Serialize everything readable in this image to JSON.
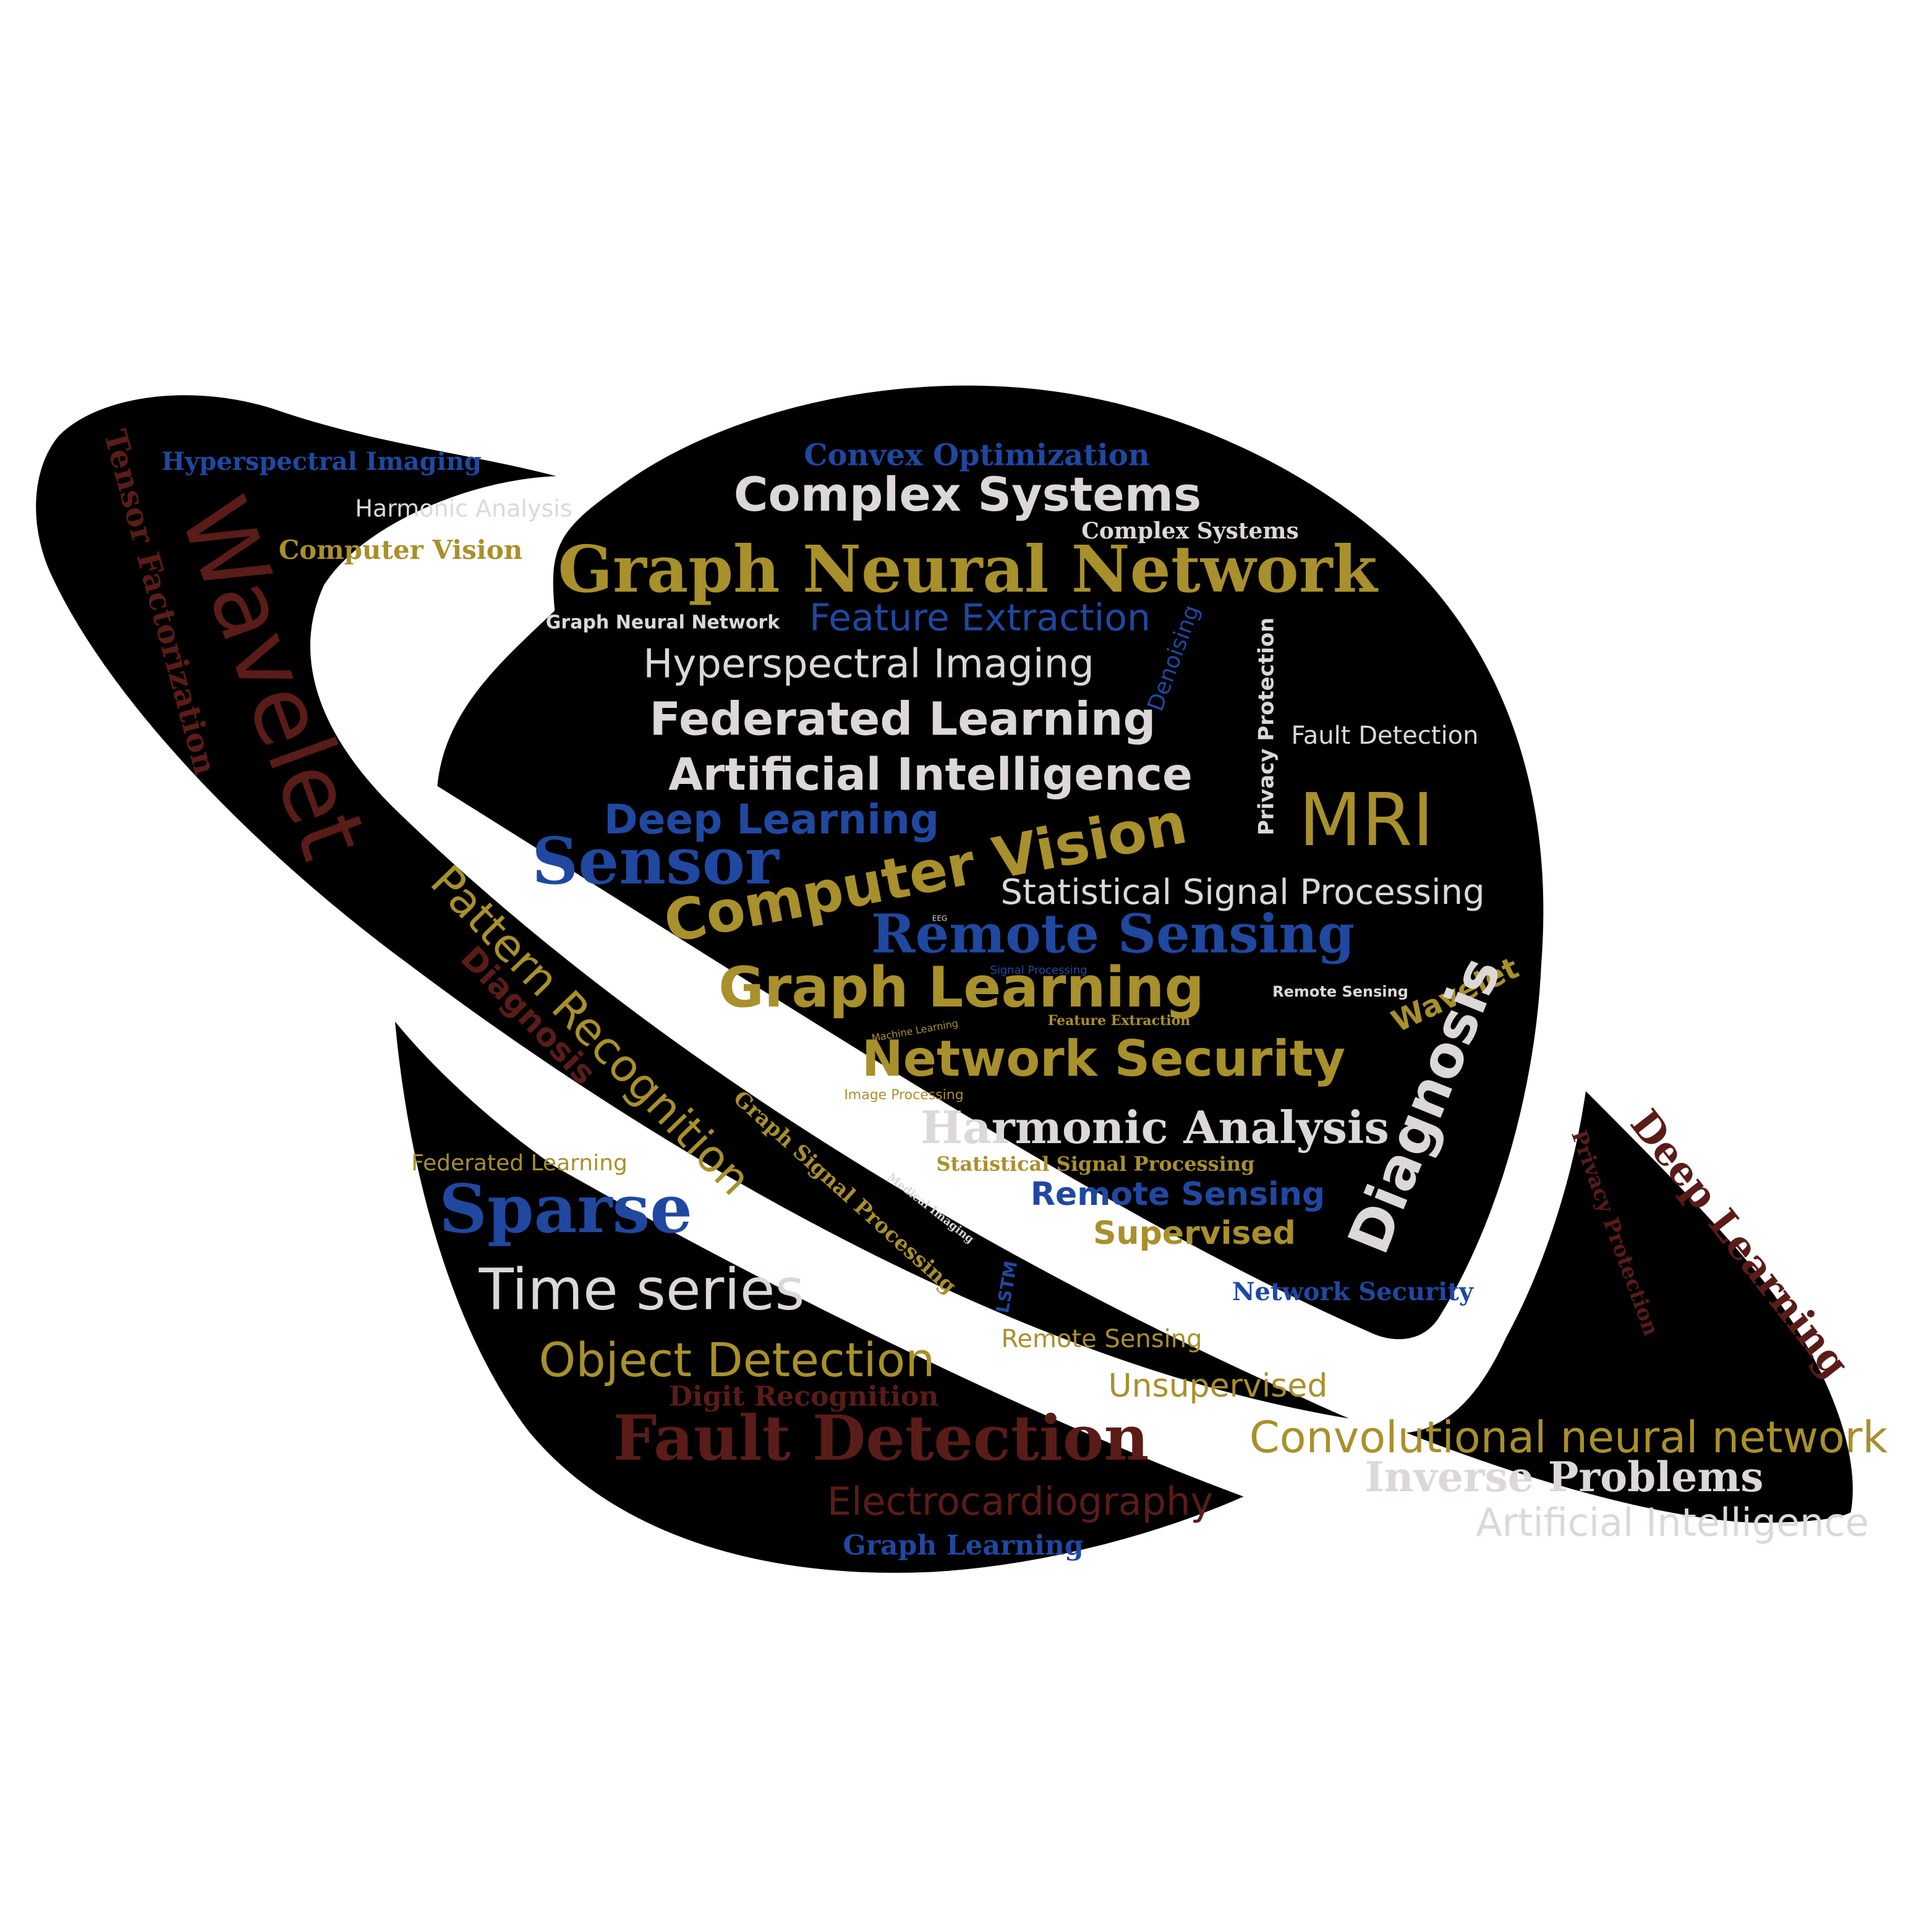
{
  "palette": {
    "background": "#ffffff",
    "shape_fill": "#000000",
    "shape_stroke": "#ffffff",
    "gold": "#a8902c",
    "white": "#ddd8d8",
    "blue": "#2048a0",
    "brown": "#5a1c18"
  },
  "words": {
    "w1": "Convex Optimization",
    "w2": "Complex Systems",
    "w3": "Complex Systems",
    "w4": "Graph Neural Network",
    "w5": "Graph Neural Network",
    "w6": "Feature Extraction",
    "w7": "Denoising",
    "w8": "Hyperspectral Imaging",
    "w9": "Privacy Protection",
    "w10": "Federated Learning",
    "w11": "Fault Detection",
    "w12": "Artificial Intelligence",
    "w13": "Deep Learning",
    "w14": "MRI",
    "w15": "Sensor",
    "w16": "Computer Vision",
    "w17": "Statistical Signal Processing",
    "w18": "EEG",
    "w19": "Remote Sensing",
    "w20": "Signal Processing",
    "w21": "Graph Learning",
    "w22": "Remote Sensing",
    "w23": "Wavelet",
    "w24": "Machine Learning",
    "w25": "Feature Extraction",
    "w26": "Diagnosis",
    "w27": "Network Security",
    "w28": "Image Processing",
    "w29": "Harmonic Analysis",
    "w30": "Statistical Signal Processing",
    "w31": "Remote Sensing",
    "w32": "Supervised",
    "w33": "Network Security",
    "w34": "Hyperspectral Imaging",
    "w35": "Harmonic Analysis",
    "w36": "Computer Vision",
    "w37": "Tensor Factorization",
    "w38": "Wavelet",
    "w39": "Pattern Recognition",
    "w40": "Diagnosis",
    "w41": "Graph Signal Processing",
    "w42": "Medical Imaging",
    "w43": "Federated Learning",
    "w44": "Sparse",
    "w45": "Time series",
    "w46": "Object Detection",
    "w47": "Digit Recognition",
    "w48": "Fault Detection",
    "w49": "Electrocardiography",
    "w50": "Graph Learning",
    "w51": "LSTM",
    "w52": "Remote Sensing",
    "w53": "Unsupervised",
    "w54": "Convolutional neural network",
    "w55": "Inverse Problems",
    "w56": "Artificial Intelligence",
    "w57": "Privacy Protection",
    "w58": "Deep Learning"
  }
}
